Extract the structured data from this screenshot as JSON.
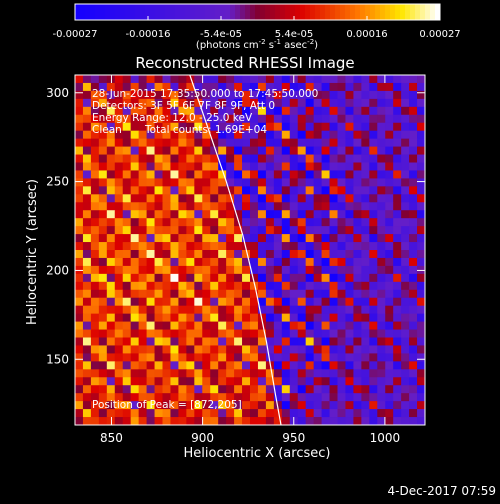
{
  "chart_data": {
    "type": "heatmap",
    "title": "Reconstructed RHESSI Image",
    "xlabel": "Heliocentric X (arcsec)",
    "ylabel": "Heliocentric Y (arcsec)",
    "xlim": [
      830,
      1022
    ],
    "ylim": [
      113,
      310
    ],
    "xticks": [
      850,
      900,
      950,
      1000
    ],
    "yticks": [
      150,
      200,
      250,
      300
    ],
    "colorbar": {
      "ticks": [
        "-0.00027",
        "-0.00016",
        "-5.4e-05",
        "5.4e-05",
        "0.00016",
        "0.00027"
      ],
      "unit_prefix": "(photons cm",
      "unit_e1": "-2",
      "unit_mid": " s",
      "unit_e2": "-1",
      "unit_mid2": " asec",
      "unit_e3": "-2",
      "unit_suffix": ")",
      "range": [
        -0.00027,
        0.00027
      ]
    },
    "annotations": {
      "time_range": "28-Jun-2015 17:35:50.000 to 17:45:50.000",
      "detectors": "Detectors: 3F 5F 6F 7F 8F 9F, Att 0",
      "energy_range": "Energy Range: 12.0 - 25.0 keV",
      "algorithm": "Clean",
      "total_counts": "Total counts: 1.69E+04",
      "peak": "Position of Peak = [872,205]"
    },
    "peak_position": [
      872,
      205
    ],
    "limb_curve": [
      [
        893,
        310
      ],
      [
        903,
        280
      ],
      [
        913,
        250
      ],
      [
        922,
        220
      ],
      [
        929,
        190
      ],
      [
        935,
        160
      ],
      [
        940,
        130
      ],
      [
        943,
        113
      ]
    ],
    "colors": {
      "cold": "#1a00ff",
      "hot": "#ffffff",
      "mid": "#ff0000"
    }
  },
  "footer": {
    "date": "4-Dec-2017 07:59"
  }
}
